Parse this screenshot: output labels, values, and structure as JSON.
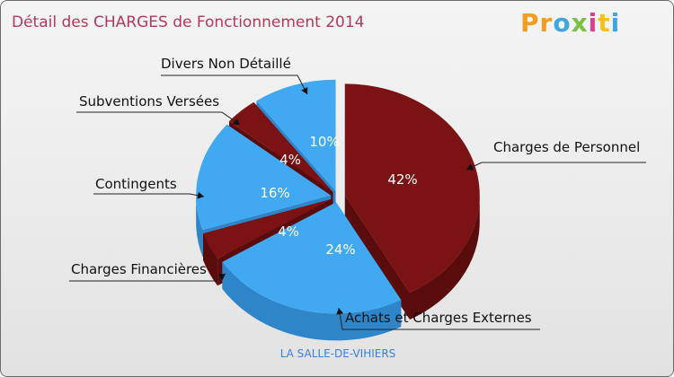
{
  "header": {
    "title": "Détail des CHARGES de Fonctionnement 2014",
    "logo_letters": [
      "P",
      "r",
      "o",
      "x",
      "i",
      "t",
      "i"
    ],
    "logo_colors": [
      "#f39c1e",
      "#f39c1e",
      "#3fa7e0",
      "#7ac143",
      "#e23c8f",
      "#f7c21c",
      "#3fa7e0"
    ]
  },
  "chart_data": {
    "type": "pie",
    "title": "Détail des CHARGES de Fonctionnement 2014",
    "subtitle": "LA SALLE-DE-VIHIERS",
    "slices": [
      {
        "label": "Charges de Personnel",
        "value": 42,
        "pct_label": "42%",
        "color": "#7b1213",
        "side": "#5a0c0d"
      },
      {
        "label": "Achats et Charges Externes",
        "value": 24,
        "pct_label": "24%",
        "color": "#40a9f2",
        "side": "#2e86c9"
      },
      {
        "label": "Charges Financières",
        "value": 4,
        "pct_label": "4%",
        "color": "#7b1213",
        "side": "#5a0c0d"
      },
      {
        "label": "Contingents",
        "value": 16,
        "pct_label": "16%",
        "color": "#40a9f2",
        "side": "#2e86c9"
      },
      {
        "label": "Subventions Versées",
        "value": 4,
        "pct_label": "4%",
        "color": "#7b1213",
        "side": "#5a0c0d"
      },
      {
        "label": "Divers Non Détaillé",
        "value": 10,
        "pct_label": "10%",
        "color": "#40a9f2",
        "side": "#2e86c9"
      }
    ]
  },
  "footer": {
    "commune": "LA SALLE-DE-VIHIERS"
  }
}
